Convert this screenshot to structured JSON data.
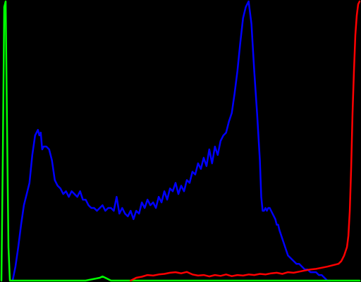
{
  "chart_data": {
    "type": "line",
    "title": "",
    "xlabel": "",
    "ylabel": "",
    "xlim": [
      0,
      255
    ],
    "ylim": [
      0,
      1
    ],
    "grid": false,
    "legend": "none",
    "background": "#000000",
    "series": [
      {
        "color": "#0000ff",
        "x": [
          8,
          10,
          12,
          14,
          16,
          18,
          20,
          22,
          24,
          25,
          26,
          27,
          28,
          29,
          30,
          32,
          34,
          36,
          38,
          40,
          42,
          44,
          46,
          48,
          50,
          52,
          54,
          56,
          58,
          60,
          62,
          64,
          66,
          68,
          70,
          72,
          74,
          76,
          78,
          80,
          82,
          84,
          86,
          88,
          90,
          92,
          94,
          96,
          98,
          100,
          102,
          104,
          106,
          108,
          110,
          112,
          114,
          116,
          118,
          120,
          122,
          124,
          126,
          128,
          130,
          132,
          134,
          136,
          138,
          140,
          142,
          144,
          146,
          148,
          150,
          152,
          154,
          156,
          158,
          160,
          162,
          164,
          166,
          168,
          170,
          172,
          174,
          176,
          178,
          180,
          182,
          184,
          185,
          186,
          187,
          188,
          189,
          190,
          191,
          192,
          193,
          194,
          195,
          196,
          197,
          198,
          200,
          202,
          204,
          206,
          208,
          210,
          212,
          214,
          216,
          218,
          220,
          222,
          224,
          226,
          228,
          230,
          232,
          234
        ],
        "values": [
          0.0,
          0.05,
          0.12,
          0.2,
          0.27,
          0.31,
          0.35,
          0.45,
          0.52,
          0.53,
          0.54,
          0.52,
          0.53,
          0.47,
          0.48,
          0.48,
          0.47,
          0.43,
          0.36,
          0.34,
          0.33,
          0.31,
          0.32,
          0.3,
          0.32,
          0.31,
          0.3,
          0.32,
          0.29,
          0.29,
          0.27,
          0.26,
          0.26,
          0.25,
          0.26,
          0.27,
          0.25,
          0.26,
          0.26,
          0.25,
          0.3,
          0.24,
          0.26,
          0.24,
          0.23,
          0.25,
          0.22,
          0.25,
          0.24,
          0.28,
          0.26,
          0.29,
          0.27,
          0.28,
          0.26,
          0.3,
          0.28,
          0.32,
          0.29,
          0.33,
          0.32,
          0.35,
          0.31,
          0.34,
          0.32,
          0.36,
          0.35,
          0.39,
          0.38,
          0.42,
          0.4,
          0.44,
          0.41,
          0.47,
          0.42,
          0.48,
          0.45,
          0.5,
          0.52,
          0.53,
          0.57,
          0.6,
          0.67,
          0.75,
          0.85,
          0.94,
          0.98,
          1.0,
          0.92,
          0.75,
          0.6,
          0.43,
          0.3,
          0.25,
          0.25,
          0.26,
          0.25,
          0.26,
          0.26,
          0.25,
          0.24,
          0.23,
          0.22,
          0.2,
          0.2,
          0.18,
          0.15,
          0.12,
          0.09,
          0.08,
          0.07,
          0.06,
          0.06,
          0.05,
          0.04,
          0.04,
          0.03,
          0.03,
          0.03,
          0.02,
          0.02,
          0.01,
          0.0,
          0.0
        ]
      },
      {
        "color": "#00ff00",
        "x": [
          0,
          1,
          2,
          3,
          4,
          5,
          6,
          8,
          10,
          20,
          30,
          40,
          50,
          60,
          65,
          70,
          72,
          74,
          76,
          78,
          80,
          90,
          100,
          150,
          200,
          255
        ],
        "values": [
          0.0,
          0.45,
          0.98,
          1.0,
          0.55,
          0.12,
          0.0,
          0.0,
          0.0,
          0.0,
          0.0,
          0.0,
          0.0,
          0.0,
          0.005,
          0.01,
          0.015,
          0.01,
          0.005,
          0.0,
          0.0,
          0.0,
          0.0,
          0.0,
          0.0,
          0.0
        ]
      },
      {
        "color": "#ff0000",
        "x": [
          92,
          94,
          96,
          98,
          100,
          104,
          108,
          112,
          116,
          120,
          124,
          128,
          132,
          136,
          140,
          144,
          148,
          152,
          156,
          160,
          164,
          168,
          172,
          176,
          180,
          184,
          188,
          192,
          196,
          200,
          204,
          208,
          212,
          216,
          220,
          224,
          228,
          232,
          236,
          240,
          242,
          244,
          246,
          247,
          248,
          249,
          250,
          251,
          252,
          253,
          254,
          255
        ],
        "values": [
          0.0,
          0.005,
          0.01,
          0.012,
          0.014,
          0.02,
          0.018,
          0.022,
          0.024,
          0.028,
          0.03,
          0.026,
          0.031,
          0.022,
          0.018,
          0.02,
          0.015,
          0.02,
          0.017,
          0.022,
          0.016,
          0.02,
          0.018,
          0.022,
          0.02,
          0.024,
          0.022,
          0.026,
          0.028,
          0.024,
          0.03,
          0.028,
          0.032,
          0.036,
          0.04,
          0.042,
          0.046,
          0.05,
          0.055,
          0.06,
          0.07,
          0.09,
          0.12,
          0.16,
          0.25,
          0.4,
          0.6,
          0.75,
          0.88,
          0.95,
          0.99,
          1.0
        ]
      }
    ]
  }
}
